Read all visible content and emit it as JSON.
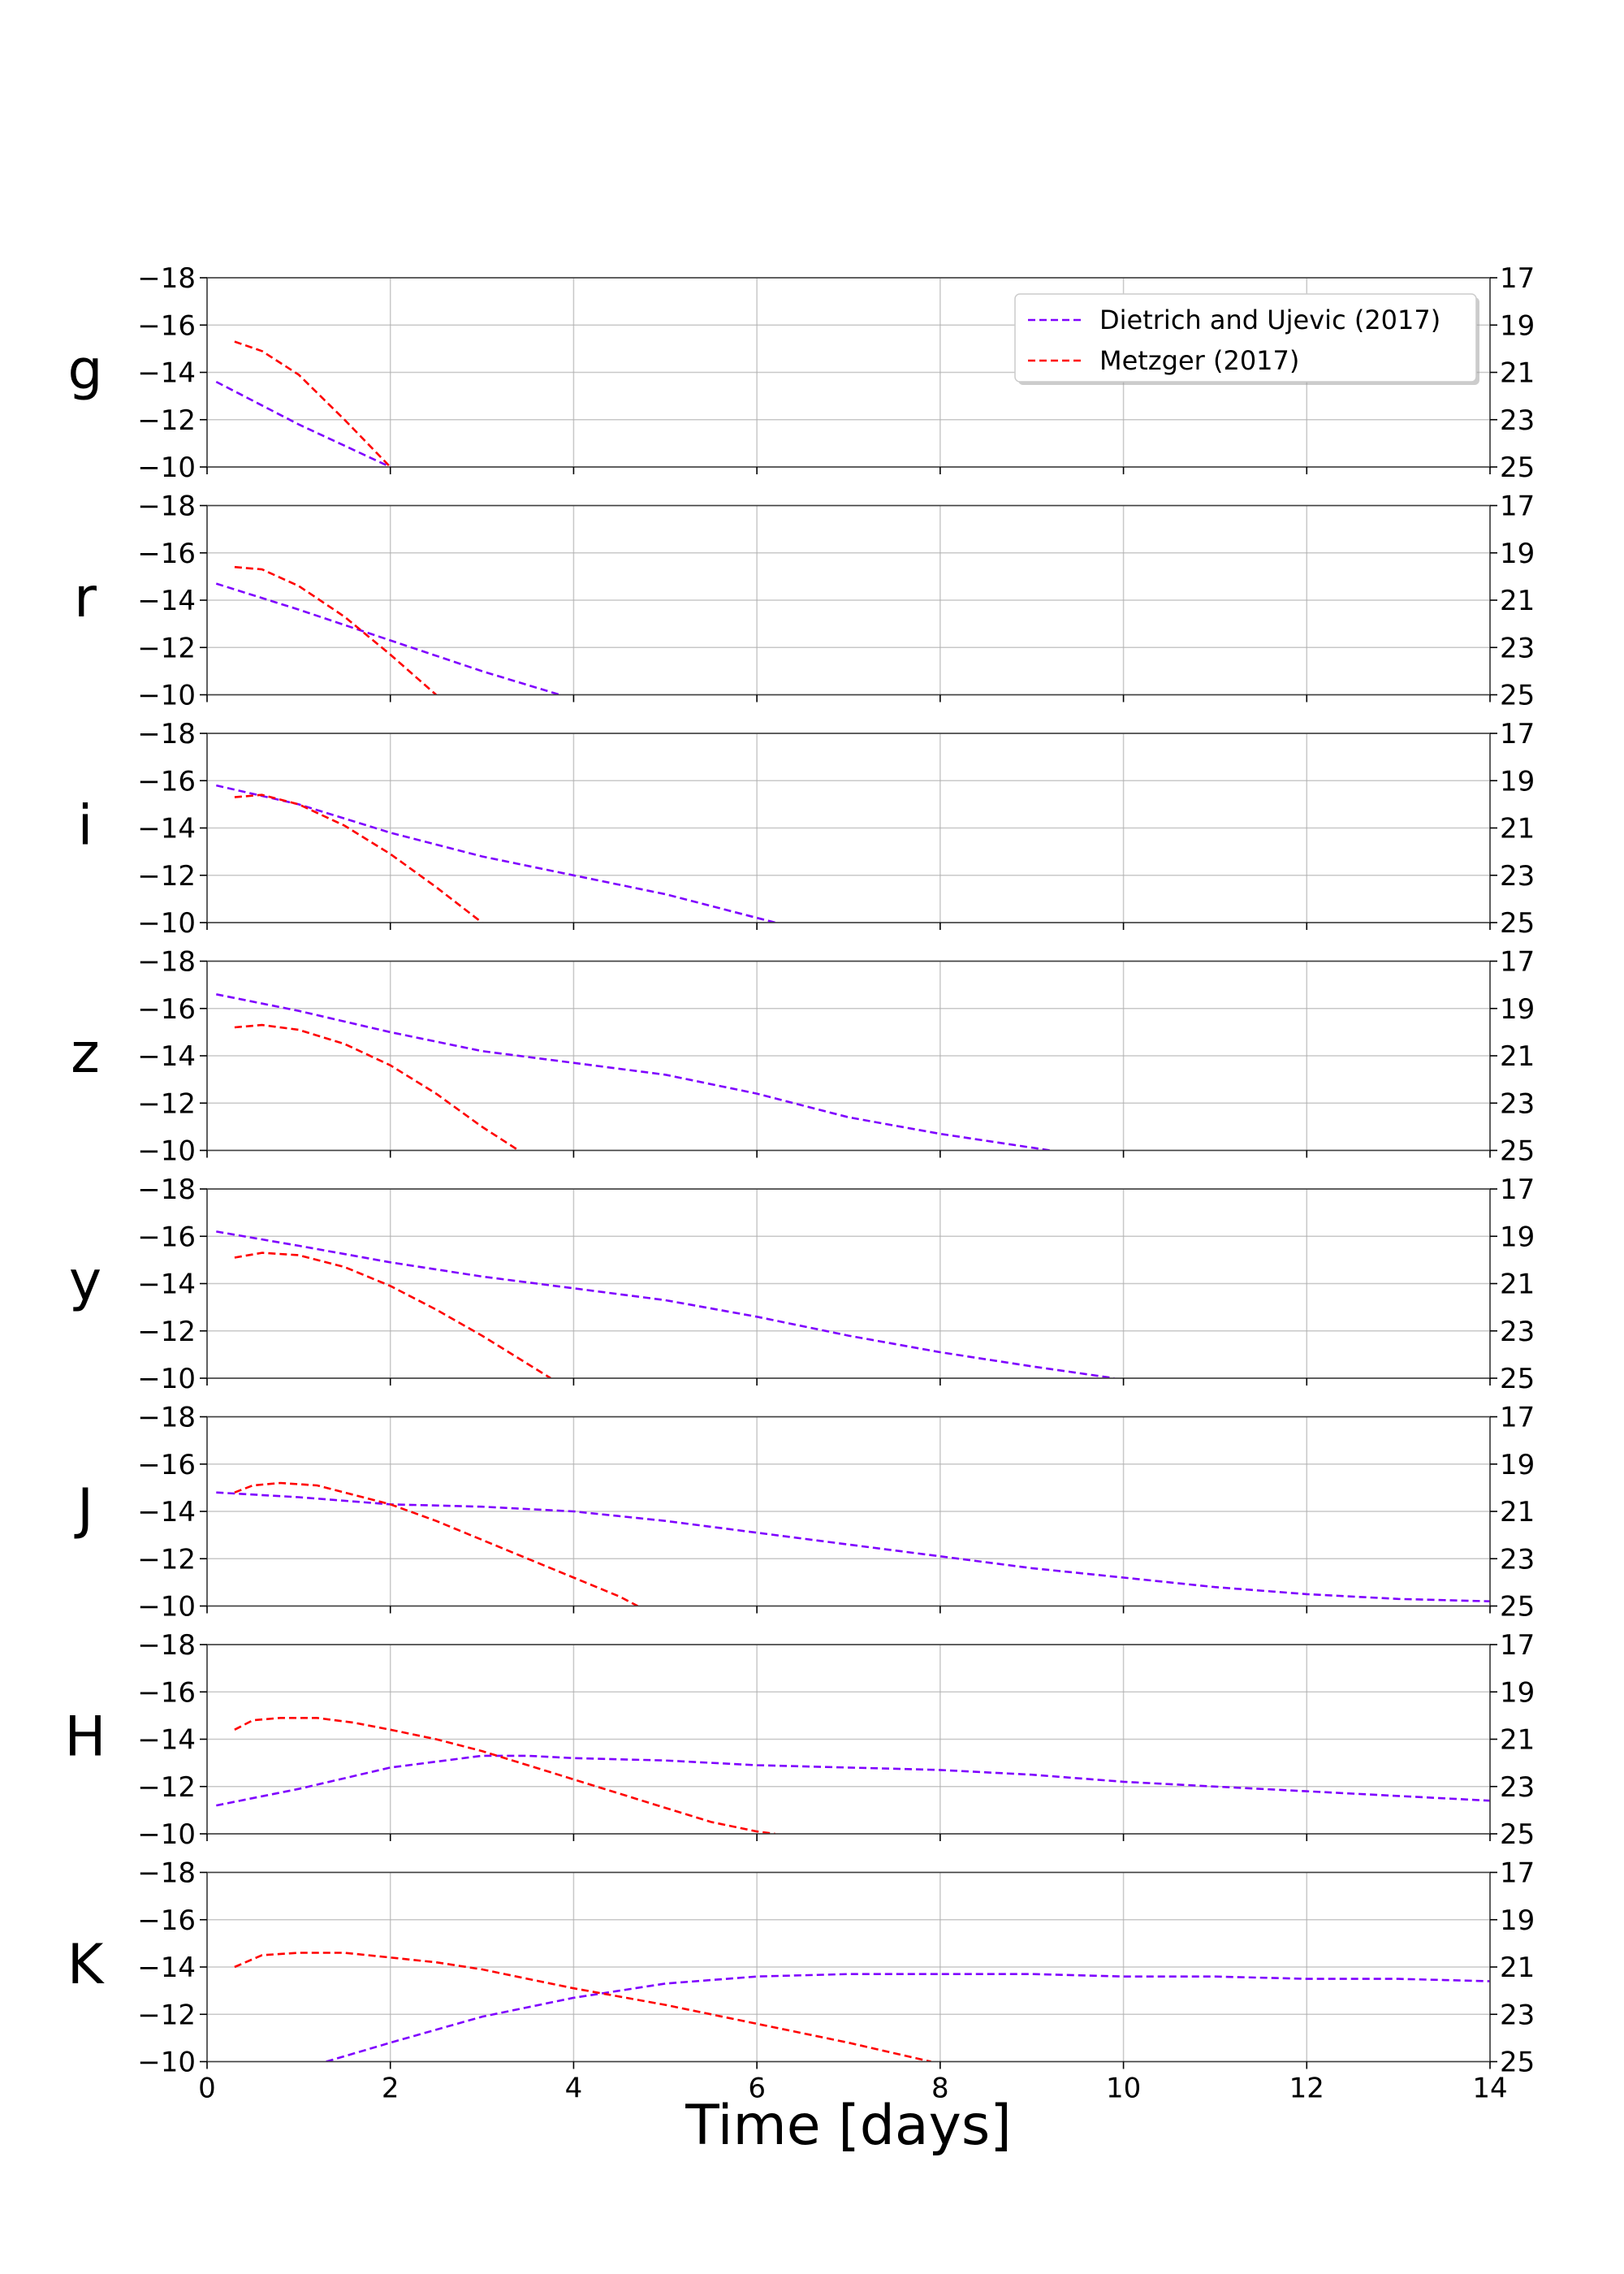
{
  "chart_data": {
    "type": "line",
    "xlabel": "Time [days]",
    "xlim": [
      0,
      14
    ],
    "x_ticks": [
      0,
      2,
      4,
      6,
      8,
      10,
      12,
      14
    ],
    "ylim": [
      -10,
      -18
    ],
    "y_ticks_left": [
      -18,
      -16,
      -14,
      -12,
      -10
    ],
    "y_ticks_right": [
      17,
      19,
      21,
      23,
      25
    ],
    "grid": true,
    "legend_position": "top-right",
    "legend": [
      {
        "name": "Dietrich and Ujevic (2017)",
        "color": "#7f00ff"
      },
      {
        "name": "Metzger (2017)",
        "color": "#ff0000"
      }
    ],
    "panels": [
      {
        "band": "g",
        "series": [
          {
            "name": "Dietrich and Ujevic (2017)",
            "color": "#7f00ff",
            "x": [
              0.1,
              1.0,
              2.0
            ],
            "y": [
              -13.6,
              -11.8,
              -10.0
            ]
          },
          {
            "name": "Metzger (2017)",
            "color": "#ff0000",
            "x": [
              0.3,
              0.6,
              1.0,
              1.5,
              2.0
            ],
            "y": [
              -15.3,
              -14.9,
              -13.9,
              -12.0,
              -10.0
            ]
          }
        ]
      },
      {
        "band": "r",
        "series": [
          {
            "name": "Dietrich and Ujevic (2017)",
            "color": "#7f00ff",
            "x": [
              0.1,
              1.0,
              2.0,
              3.0,
              3.85
            ],
            "y": [
              -14.7,
              -13.6,
              -12.3,
              -11.0,
              -10.0
            ]
          },
          {
            "name": "Metzger (2017)",
            "color": "#ff0000",
            "x": [
              0.3,
              0.6,
              1.0,
              1.5,
              2.0,
              2.5
            ],
            "y": [
              -15.4,
              -15.3,
              -14.6,
              -13.3,
              -11.7,
              -10.0
            ]
          }
        ]
      },
      {
        "band": "i",
        "series": [
          {
            "name": "Dietrich and Ujevic (2017)",
            "color": "#7f00ff",
            "x": [
              0.1,
              1.0,
              2.0,
              3.0,
              4.0,
              5.0,
              6.2
            ],
            "y": [
              -15.8,
              -15.0,
              -13.8,
              -12.8,
              -12.0,
              -11.2,
              -10.0
            ]
          },
          {
            "name": "Metzger (2017)",
            "color": "#ff0000",
            "x": [
              0.3,
              0.6,
              1.0,
              1.5,
              2.0,
              2.5,
              3.0
            ],
            "y": [
              -15.3,
              -15.4,
              -15.0,
              -14.1,
              -12.9,
              -11.5,
              -10.0
            ]
          }
        ]
      },
      {
        "band": "z",
        "series": [
          {
            "name": "Dietrich and Ujevic (2017)",
            "color": "#7f00ff",
            "x": [
              0.1,
              1.0,
              2.0,
              3.0,
              4.0,
              5.0,
              6.0,
              7.0,
              8.0,
              9.2
            ],
            "y": [
              -16.6,
              -15.9,
              -15.0,
              -14.2,
              -13.7,
              -13.2,
              -12.4,
              -11.4,
              -10.7,
              -10.0
            ]
          },
          {
            "name": "Metzger (2017)",
            "color": "#ff0000",
            "x": [
              0.3,
              0.6,
              1.0,
              1.5,
              2.0,
              2.5,
              3.0,
              3.4
            ],
            "y": [
              -15.2,
              -15.3,
              -15.1,
              -14.5,
              -13.6,
              -12.4,
              -11.0,
              -10.0
            ]
          }
        ]
      },
      {
        "band": "y",
        "series": [
          {
            "name": "Dietrich and Ujevic (2017)",
            "color": "#7f00ff",
            "x": [
              0.1,
              1.0,
              2.0,
              3.0,
              4.0,
              5.0,
              6.0,
              7.0,
              8.0,
              9.0,
              9.9
            ],
            "y": [
              -16.2,
              -15.6,
              -14.9,
              -14.3,
              -13.8,
              -13.3,
              -12.6,
              -11.8,
              -11.1,
              -10.5,
              -10.0
            ]
          },
          {
            "name": "Metzger (2017)",
            "color": "#ff0000",
            "x": [
              0.3,
              0.6,
              1.0,
              1.5,
              2.0,
              2.5,
              3.0,
              3.5,
              3.75
            ],
            "y": [
              -15.1,
              -15.3,
              -15.2,
              -14.7,
              -13.9,
              -12.9,
              -11.8,
              -10.6,
              -10.0
            ]
          }
        ]
      },
      {
        "band": "J",
        "series": [
          {
            "name": "Dietrich and Ujevic (2017)",
            "color": "#7f00ff",
            "x": [
              0.1,
              1.0,
              2.0,
              3.0,
              4.0,
              5.0,
              6.0,
              7.0,
              8.0,
              9.0,
              10.0,
              11.0,
              12.0,
              13.0,
              14.0
            ],
            "y": [
              -14.8,
              -14.6,
              -14.3,
              -14.2,
              -14.0,
              -13.6,
              -13.1,
              -12.6,
              -12.1,
              -11.6,
              -11.2,
              -10.8,
              -10.5,
              -10.3,
              -10.2
            ]
          },
          {
            "name": "Metzger (2017)",
            "color": "#ff0000",
            "x": [
              0.3,
              0.5,
              0.8,
              1.2,
              1.6,
              2.0,
              2.5,
              3.0,
              3.5,
              4.0,
              4.5,
              4.7
            ],
            "y": [
              -14.8,
              -15.1,
              -15.2,
              -15.1,
              -14.7,
              -14.3,
              -13.6,
              -12.8,
              -12.0,
              -11.2,
              -10.4,
              -10.0
            ]
          }
        ]
      },
      {
        "band": "H",
        "series": [
          {
            "name": "Dietrich and Ujevic (2017)",
            "color": "#7f00ff",
            "x": [
              0.1,
              1.0,
              2.0,
              3.0,
              3.5,
              4.0,
              5.0,
              6.0,
              7.0,
              8.0,
              9.0,
              10.0,
              11.0,
              12.0,
              13.0,
              14.0
            ],
            "y": [
              -11.2,
              -11.9,
              -12.8,
              -13.3,
              -13.3,
              -13.2,
              -13.1,
              -12.9,
              -12.8,
              -12.7,
              -12.5,
              -12.2,
              -12.0,
              -11.8,
              -11.6,
              -11.4
            ]
          },
          {
            "name": "Metzger (2017)",
            "color": "#ff0000",
            "x": [
              0.3,
              0.5,
              0.8,
              1.2,
              1.6,
              2.0,
              2.5,
              3.0,
              3.5,
              4.0,
              4.5,
              5.0,
              5.5,
              6.0,
              6.2
            ],
            "y": [
              -14.4,
              -14.8,
              -14.9,
              -14.9,
              -14.7,
              -14.4,
              -14.0,
              -13.5,
              -12.9,
              -12.3,
              -11.7,
              -11.1,
              -10.5,
              -10.1,
              -10.0
            ]
          }
        ]
      },
      {
        "band": "K",
        "series": [
          {
            "name": "Dietrich and Ujevic (2017)",
            "color": "#7f00ff",
            "x": [
              1.3,
              2.0,
              3.0,
              4.0,
              5.0,
              6.0,
              7.0,
              8.0,
              9.0,
              10.0,
              11.0,
              12.0,
              13.0,
              14.0
            ],
            "y": [
              -10.0,
              -10.8,
              -11.9,
              -12.7,
              -13.3,
              -13.6,
              -13.7,
              -13.7,
              -13.7,
              -13.6,
              -13.6,
              -13.5,
              -13.5,
              -13.4
            ]
          },
          {
            "name": "Metzger (2017)",
            "color": "#ff0000",
            "x": [
              0.3,
              0.6,
              1.0,
              1.5,
              2.0,
              2.5,
              3.0,
              3.5,
              4.0,
              5.0,
              6.0,
              7.0,
              7.9
            ],
            "y": [
              -14.0,
              -14.5,
              -14.6,
              -14.6,
              -14.4,
              -14.2,
              -13.9,
              -13.5,
              -13.1,
              -12.4,
              -11.6,
              -10.8,
              -10.0
            ]
          }
        ]
      }
    ]
  }
}
